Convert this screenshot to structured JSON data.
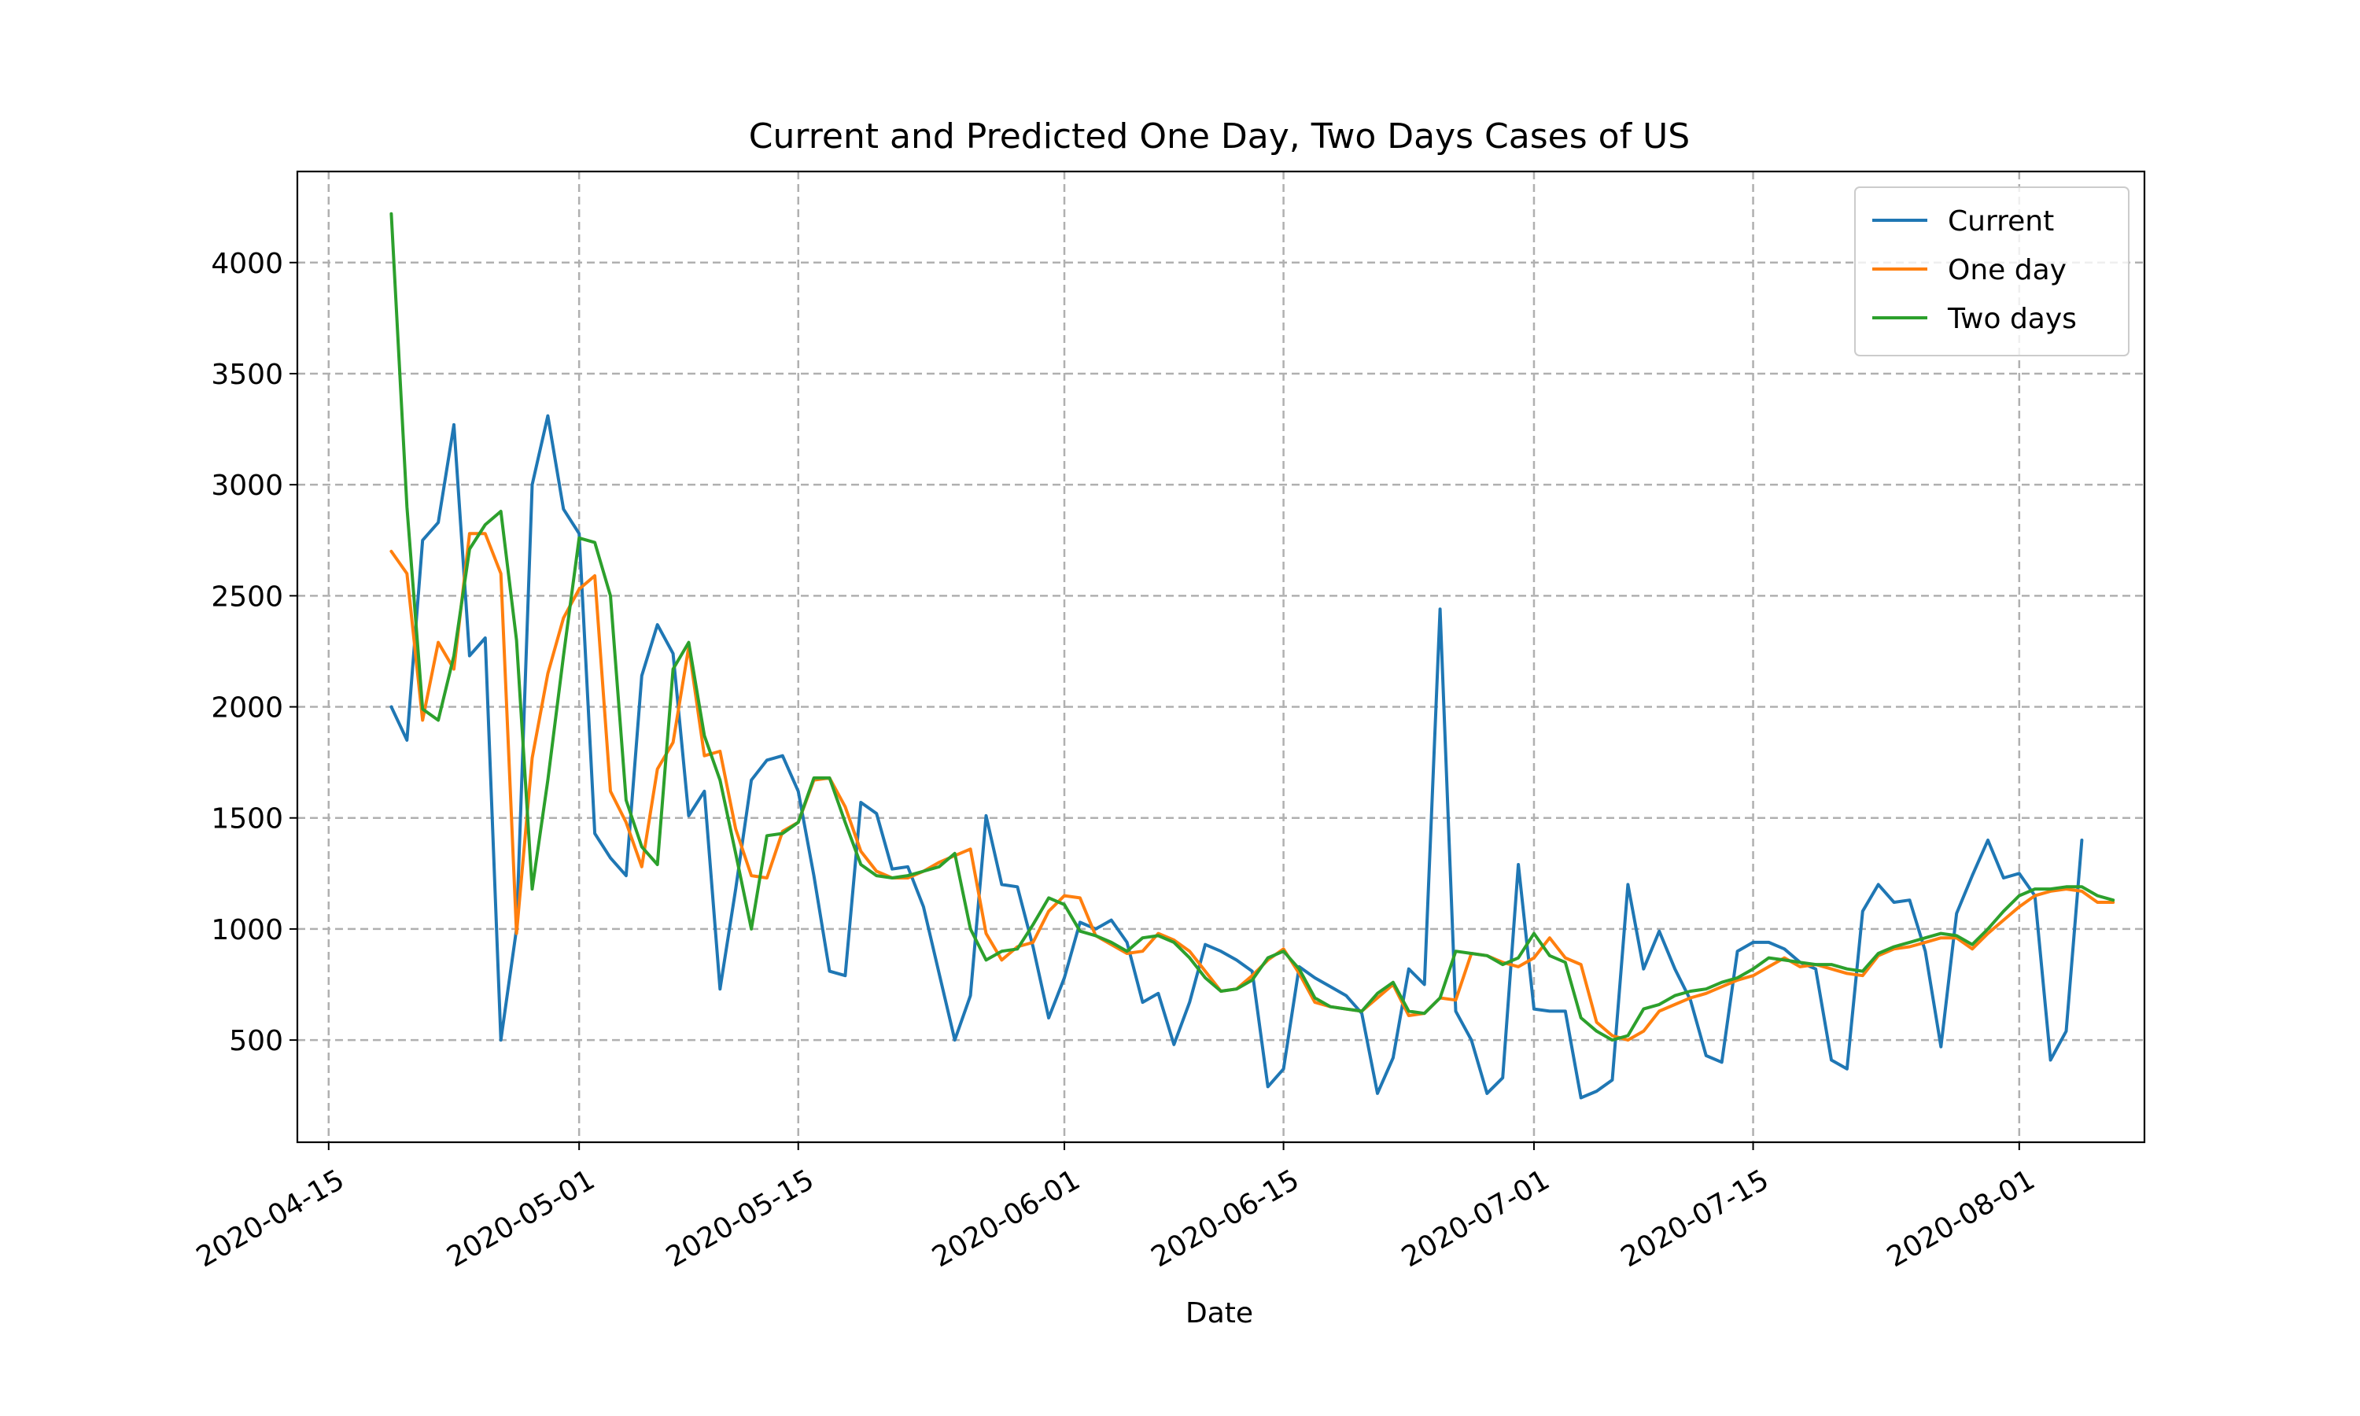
{
  "chart_data": {
    "type": "line",
    "title": "Current and Predicted One Day, Two Days Cases of US",
    "xlabel": "Date",
    "ylabel": "",
    "grid": true,
    "legend_position": "top-right",
    "x_ticks": [
      "2020-04-15",
      "2020-05-01",
      "2020-05-15",
      "2020-06-01",
      "2020-06-15",
      "2020-07-01",
      "2020-07-15",
      "2020-08-01"
    ],
    "y_ticks": [
      500,
      1000,
      1500,
      2000,
      2500,
      3000,
      3500,
      4000
    ],
    "xlim": [
      "2020-04-13",
      "2020-08-09"
    ],
    "ylim": [
      40,
      4410
    ],
    "series": [
      {
        "name": "Current",
        "color": "#1f77b4",
        "start_date": "2020-04-19",
        "values": [
          2000,
          1850,
          2750,
          2830,
          3270,
          2230,
          2310,
          500,
          1000,
          3000,
          3310,
          2890,
          2780,
          1430,
          1320,
          1240,
          2140,
          2370,
          2240,
          1510,
          1620,
          730,
          1180,
          1670,
          1760,
          1780,
          1620,
          1240,
          810,
          790,
          1570,
          1520,
          1270,
          1280,
          1100,
          800,
          500,
          700,
          1510,
          1200,
          1190,
          920,
          600,
          780,
          1030,
          1000,
          1040,
          940,
          670,
          710,
          480,
          670,
          930,
          900,
          860,
          810,
          290,
          370,
          830,
          780,
          740,
          700,
          620,
          260,
          420,
          820,
          750,
          2440,
          630,
          500,
          260,
          330,
          1290,
          640,
          630,
          630,
          240,
          270,
          320,
          1200,
          820,
          990,
          820,
          680,
          430,
          400,
          900,
          940,
          940,
          910,
          850,
          820,
          410,
          370,
          1080,
          1200,
          1120,
          1130,
          900,
          470,
          1070,
          1240,
          1400,
          1230,
          1250,
          1150,
          410,
          540,
          1400
        ]
      },
      {
        "name": "One day",
        "color": "#ff7f0e",
        "start_date": "2020-04-19",
        "values": [
          2700,
          2600,
          1940,
          2290,
          2170,
          2780,
          2780,
          2600,
          980,
          1770,
          2150,
          2400,
          2530,
          2590,
          1620,
          1480,
          1280,
          1720,
          1840,
          2270,
          1780,
          1800,
          1450,
          1240,
          1230,
          1440,
          1480,
          1670,
          1680,
          1550,
          1350,
          1260,
          1230,
          1230,
          1260,
          1300,
          1330,
          1360,
          980,
          860,
          920,
          940,
          1080,
          1150,
          1140,
          970,
          930,
          890,
          900,
          980,
          950,
          900,
          810,
          720,
          730,
          790,
          860,
          910,
          800,
          670,
          650,
          640,
          630,
          690,
          750,
          610,
          620,
          690,
          680,
          890,
          880,
          850,
          830,
          870,
          960,
          870,
          840,
          580,
          520,
          500,
          540,
          630,
          660,
          690,
          710,
          740,
          770,
          790,
          830,
          870,
          830,
          840,
          820,
          800,
          790,
          880,
          910,
          920,
          940,
          960,
          960,
          910,
          980,
          1040,
          1100,
          1150,
          1170,
          1180,
          1170,
          1120,
          1120
        ]
      },
      {
        "name": "Two days",
        "color": "#2ca02c",
        "start_date": "2020-04-19",
        "values": [
          4220,
          2900,
          1990,
          1940,
          2230,
          2710,
          2820,
          2880,
          2300,
          1180,
          1670,
          2230,
          2760,
          2740,
          2500,
          1580,
          1370,
          1290,
          2170,
          2290,
          1870,
          1670,
          1340,
          1000,
          1420,
          1430,
          1480,
          1680,
          1680,
          1480,
          1290,
          1240,
          1230,
          1240,
          1260,
          1280,
          1340,
          1000,
          860,
          900,
          910,
          1020,
          1140,
          1110,
          990,
          970,
          940,
          900,
          960,
          970,
          940,
          870,
          780,
          720,
          730,
          770,
          870,
          900,
          820,
          690,
          650,
          640,
          630,
          710,
          760,
          630,
          620,
          690,
          900,
          890,
          880,
          840,
          870,
          980,
          880,
          850,
          600,
          540,
          500,
          520,
          640,
          660,
          700,
          720,
          730,
          760,
          780,
          820,
          870,
          860,
          850,
          840,
          840,
          820,
          810,
          890,
          920,
          940,
          960,
          980,
          970,
          930,
          1000,
          1080,
          1150,
          1180,
          1180,
          1190,
          1190,
          1150,
          1130
        ]
      }
    ]
  }
}
